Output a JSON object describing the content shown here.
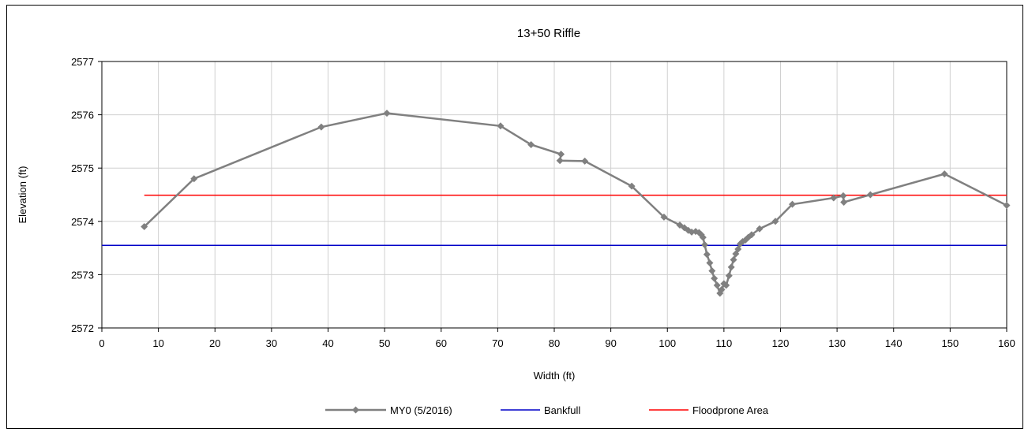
{
  "chart_data": {
    "type": "line",
    "title": "13+50 Riffle",
    "xlabel": "Width (ft)",
    "ylabel": "Elevation (ft)",
    "xlim": [
      0,
      160
    ],
    "ylim": [
      2572,
      2577
    ],
    "xticks": [
      0,
      10,
      20,
      30,
      40,
      50,
      60,
      70,
      80,
      90,
      100,
      110,
      120,
      130,
      140,
      150,
      160
    ],
    "yticks": [
      2572,
      2573,
      2574,
      2575,
      2576,
      2577
    ],
    "grid": true,
    "legend_position": "bottom",
    "series": [
      {
        "name": "MY0 (5/2016)",
        "color": "#808080",
        "marker": "diamond",
        "points": [
          [
            7.5,
            2573.9
          ],
          [
            16.3,
            2574.8
          ],
          [
            38.8,
            2575.77
          ],
          [
            50.4,
            2576.03
          ],
          [
            70.5,
            2575.79
          ],
          [
            75.9,
            2575.44
          ],
          [
            81.2,
            2575.26
          ],
          [
            81.0,
            2575.14
          ],
          [
            85.4,
            2575.13
          ],
          [
            93.7,
            2574.66
          ],
          [
            99.4,
            2574.08
          ],
          [
            102.2,
            2573.93
          ],
          [
            103.0,
            2573.88
          ],
          [
            103.7,
            2573.83
          ],
          [
            104.3,
            2573.8
          ],
          [
            105.0,
            2573.81
          ],
          [
            105.6,
            2573.79
          ],
          [
            106.0,
            2573.75
          ],
          [
            106.3,
            2573.7
          ],
          [
            106.6,
            2573.56
          ],
          [
            107.0,
            2573.38
          ],
          [
            107.5,
            2573.22
          ],
          [
            107.9,
            2573.07
          ],
          [
            108.3,
            2572.93
          ],
          [
            108.8,
            2572.8
          ],
          [
            109.3,
            2572.65
          ],
          [
            109.6,
            2572.72
          ],
          [
            110.0,
            2572.83
          ],
          [
            110.4,
            2572.8
          ],
          [
            110.9,
            2572.98
          ],
          [
            111.3,
            2573.14
          ],
          [
            111.7,
            2573.28
          ],
          [
            112.1,
            2573.39
          ],
          [
            112.5,
            2573.48
          ],
          [
            112.9,
            2573.58
          ],
          [
            113.3,
            2573.62
          ],
          [
            113.8,
            2573.65
          ],
          [
            114.3,
            2573.7
          ],
          [
            114.9,
            2573.75
          ],
          [
            116.3,
            2573.86
          ],
          [
            119.1,
            2574.0
          ],
          [
            122.1,
            2574.32
          ],
          [
            129.4,
            2574.44
          ],
          [
            131.1,
            2574.48
          ],
          [
            131.2,
            2574.36
          ],
          [
            135.9,
            2574.5
          ],
          [
            149.0,
            2574.89
          ],
          [
            160.0,
            2574.3
          ]
        ]
      },
      {
        "name": "Bankfull",
        "color": "#0000c8",
        "marker": "none",
        "points": [
          [
            0,
            2573.55
          ],
          [
            160,
            2573.55
          ]
        ]
      },
      {
        "name": "Floodprone Area",
        "color": "#ff0000",
        "marker": "none",
        "points": [
          [
            7.5,
            2574.49
          ],
          [
            160,
            2574.49
          ]
        ]
      }
    ]
  }
}
